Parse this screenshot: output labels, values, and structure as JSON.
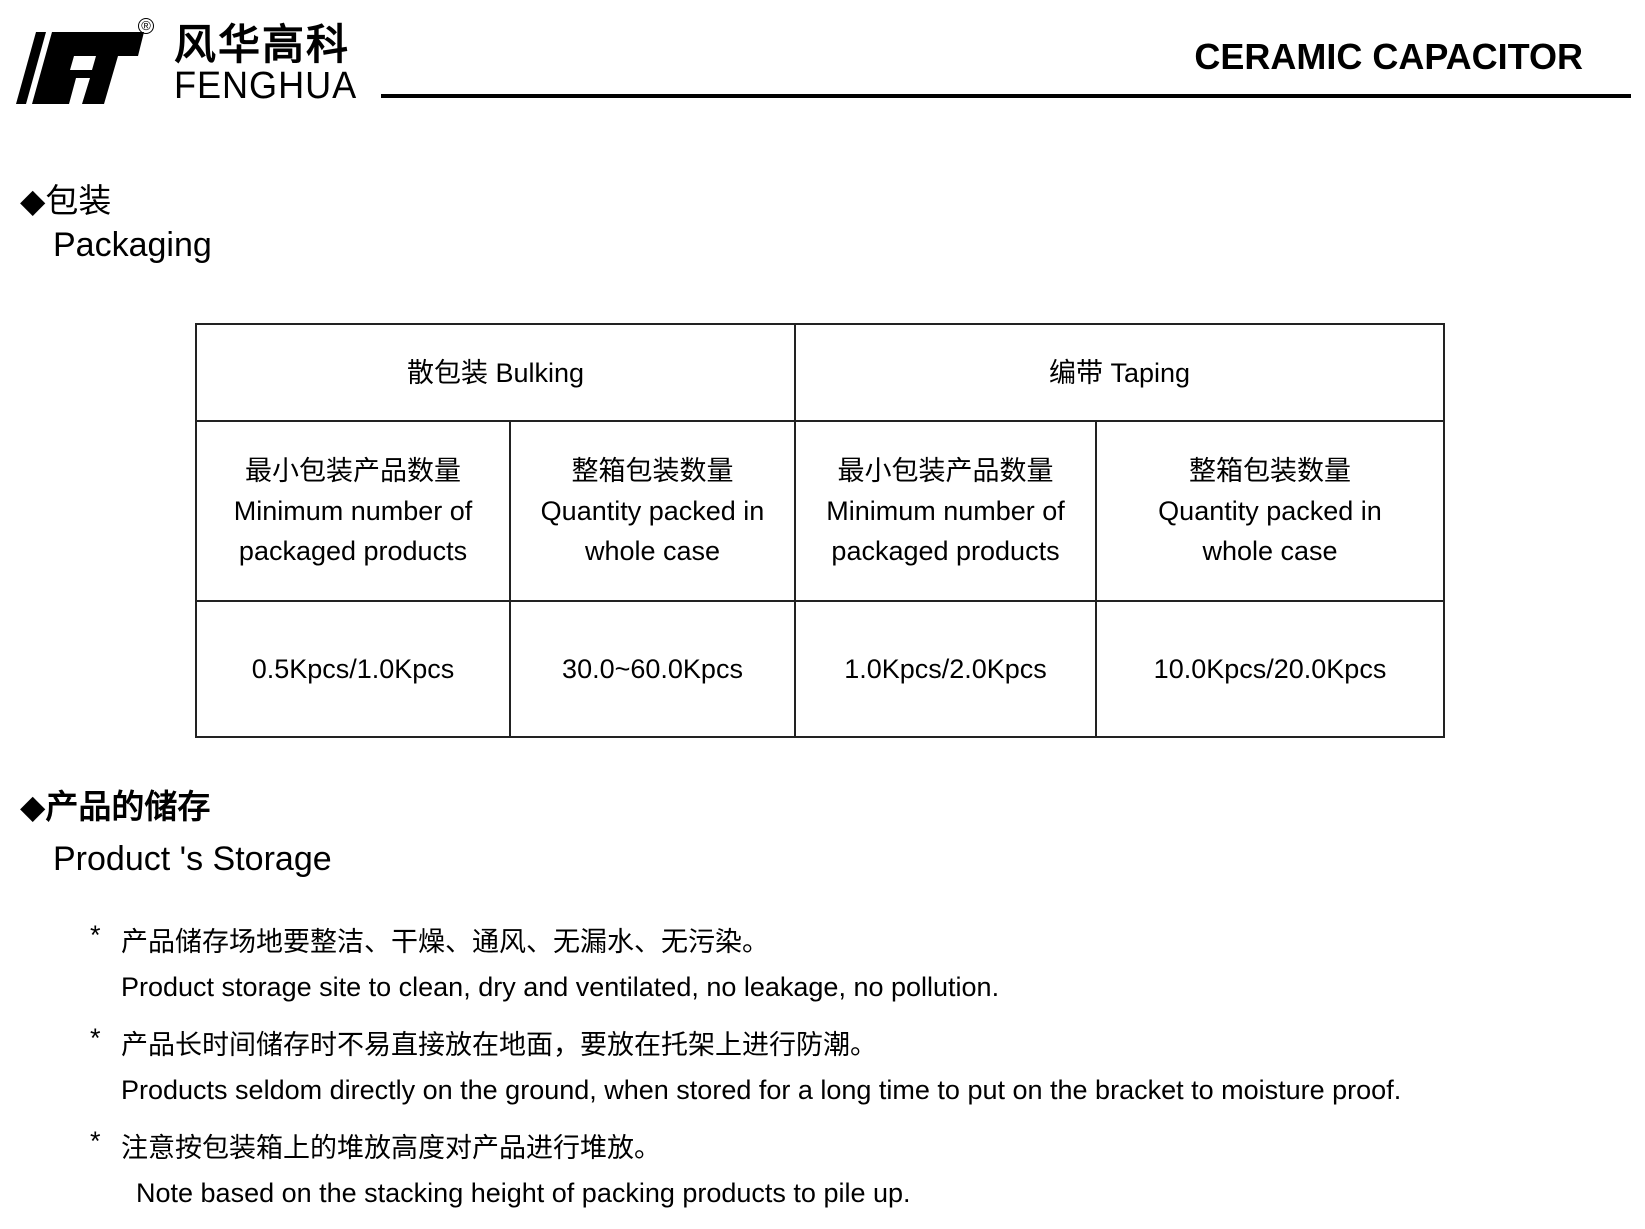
{
  "header": {
    "logo_cn": "风华高科",
    "logo_en": "FENGHUA",
    "registered": "®",
    "title": "CERAMIC CAPACITOR"
  },
  "packaging": {
    "bullet": "◆",
    "heading_cn": "包装",
    "heading_en": "Packaging",
    "table": {
      "groups": [
        "散包装 Bulking",
        "编带 Taping"
      ],
      "columns": [
        {
          "cn": "最小包装产品数量",
          "en1": "Minimum number of",
          "en2": "packaged products"
        },
        {
          "cn": "整箱包装数量",
          "en1": "Quantity packed in",
          "en2": "whole case"
        },
        {
          "cn": "最小包装产品数量",
          "en1": "Minimum number of",
          "en2": "packaged products"
        },
        {
          "cn": "整箱包装数量",
          "en1": "Quantity packed in",
          "en2": "whole case"
        }
      ],
      "values": [
        "0.5Kpcs/1.0Kpcs",
        "30.0~60.0Kpcs",
        "1.0Kpcs/2.0Kpcs",
        "10.0Kpcs/20.0Kpcs"
      ]
    }
  },
  "storage": {
    "bullet": "◆",
    "heading_cn": "产品的储存",
    "heading_en": "Product 's Storage",
    "star": "*",
    "items": [
      {
        "cn": "产品储存场地要整洁、干燥、通风、无漏水、无污染。",
        "en": "Product storage site to clean, dry and ventilated, no leakage, no pollution."
      },
      {
        "cn": "产品长时间储存时不易直接放在地面，要放在托架上进行防潮。",
        "en": "Products seldom directly on the ground, when stored for a long time to put on the bracket to moisture proof."
      },
      {
        "cn": "注意按包装箱上的堆放高度对产品进行堆放。",
        "en": "Note based on the stacking height of packing products to pile up."
      }
    ]
  }
}
